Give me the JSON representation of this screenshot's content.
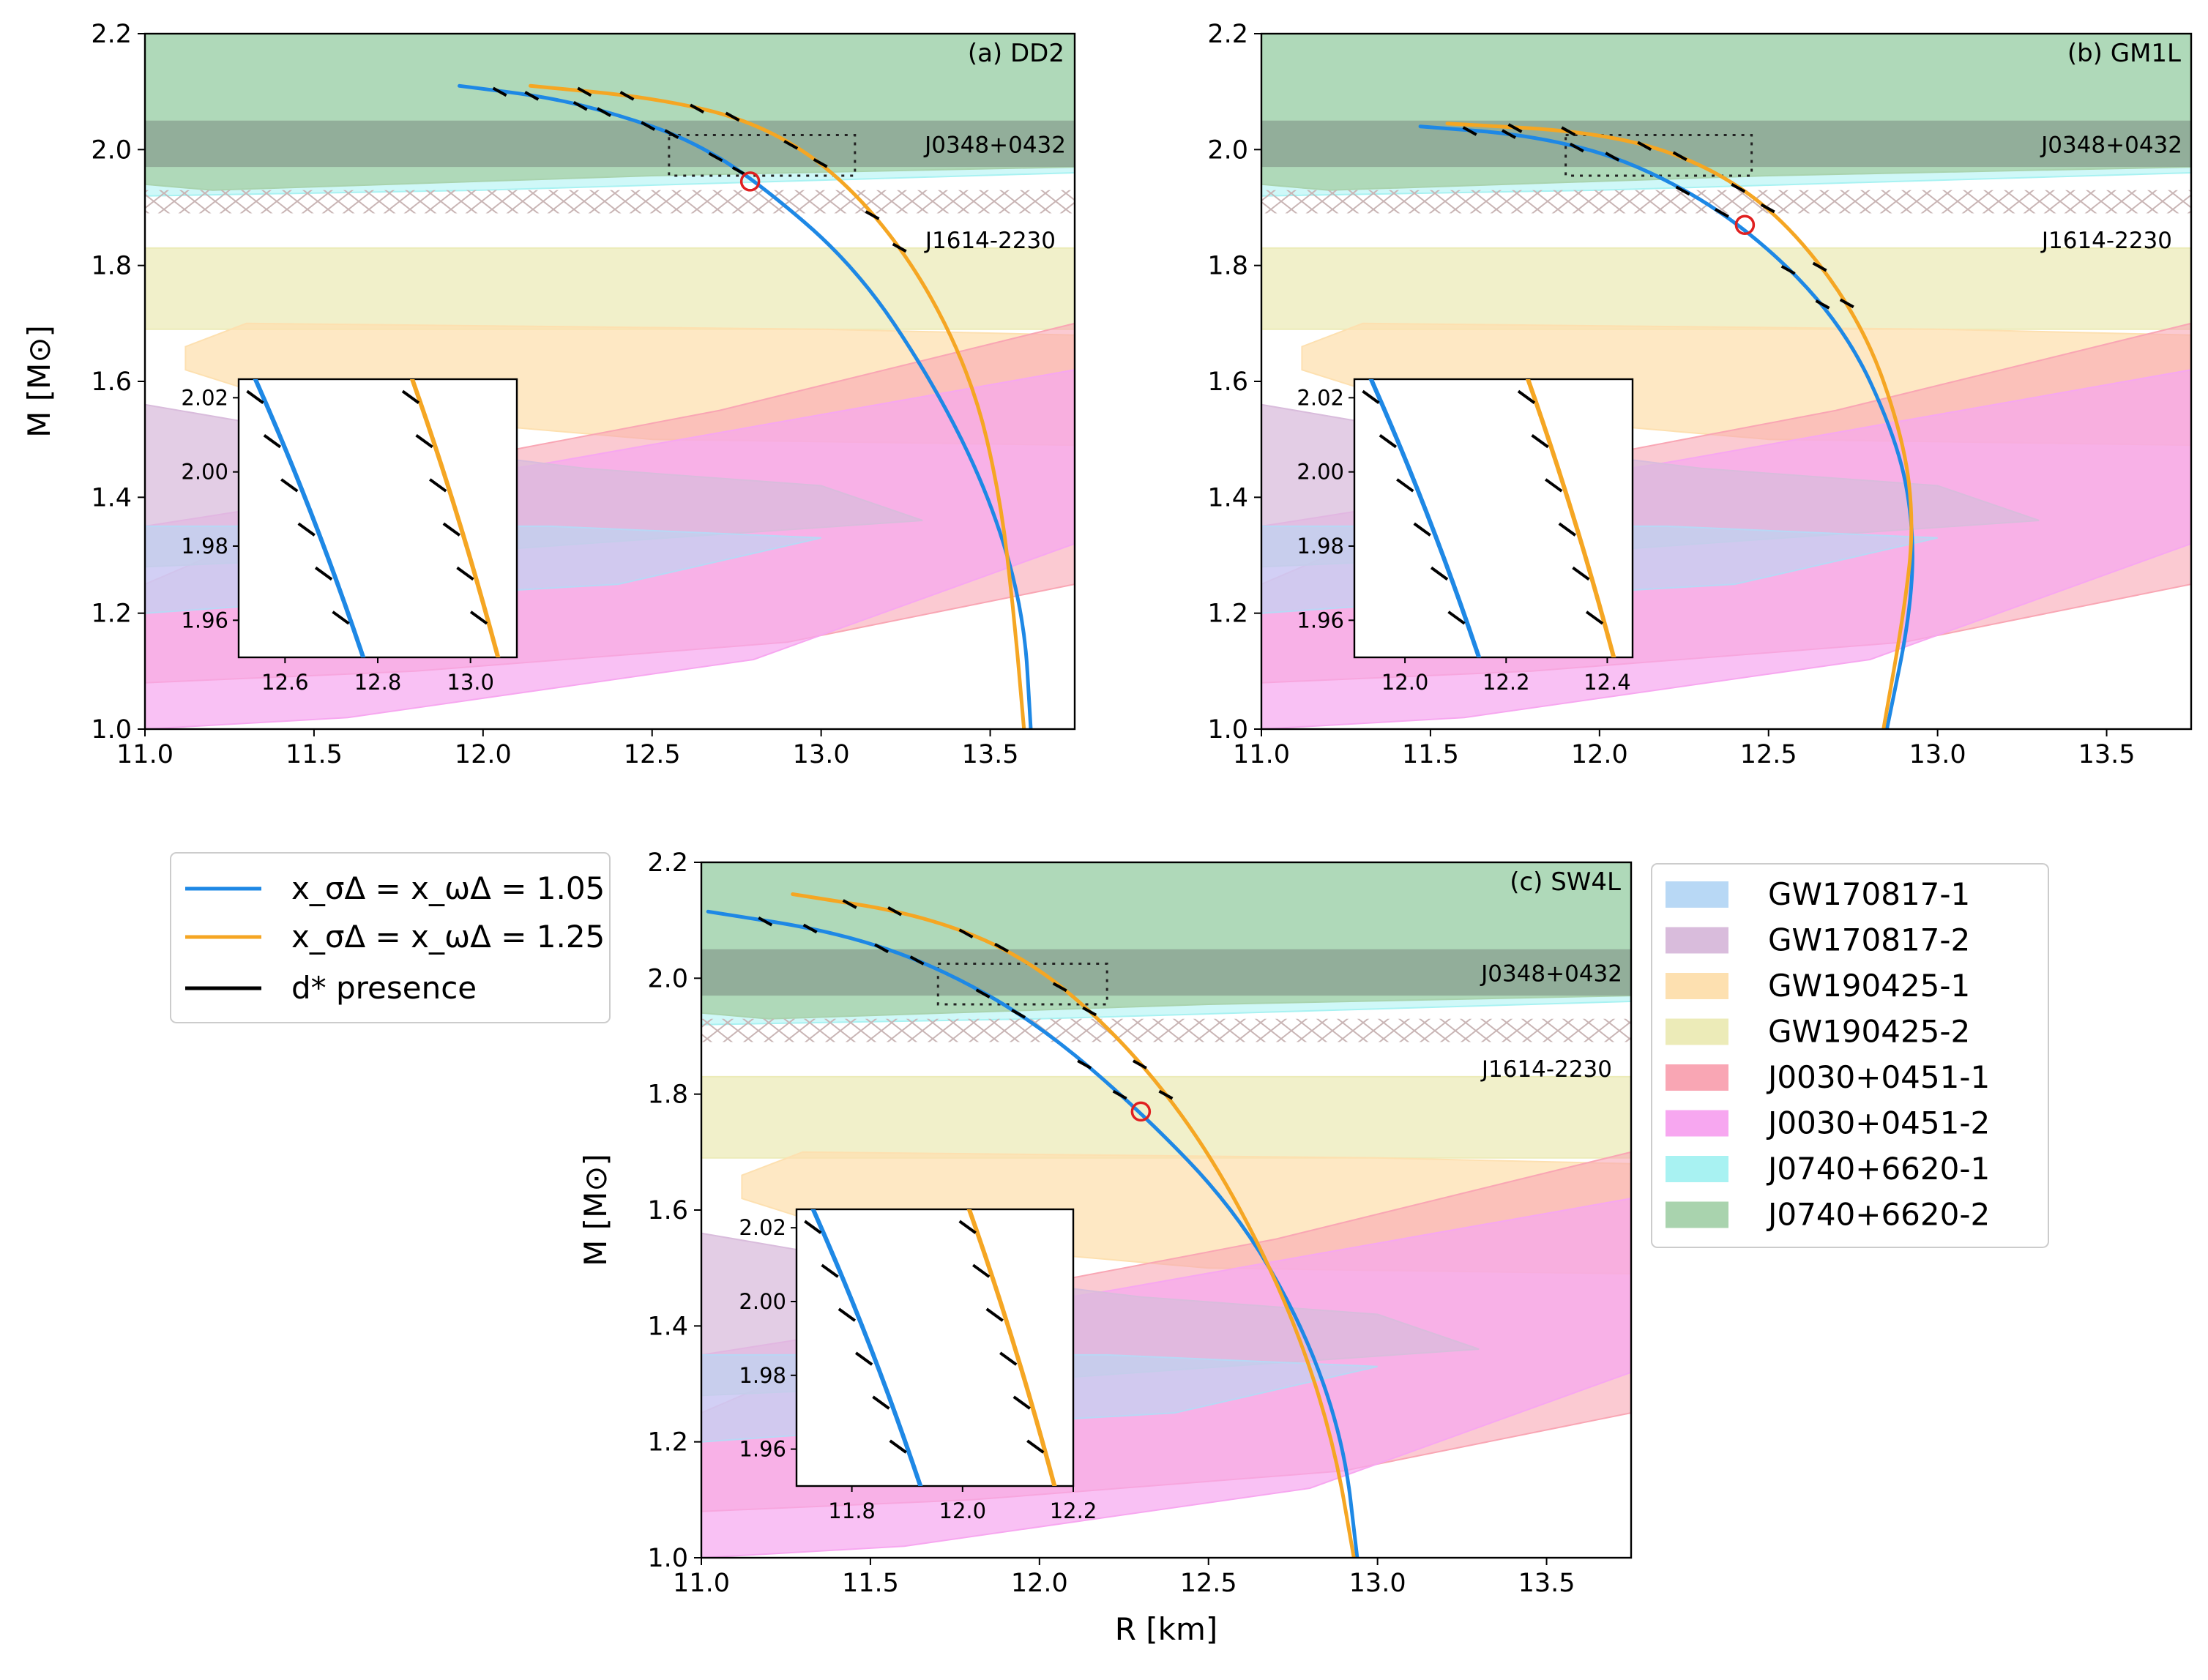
{
  "chart_data": [
    {
      "type": "line",
      "panel": "(a) DD2",
      "title": "(a) DD2",
      "xlabel": "",
      "ylabel": "M [M⊙]",
      "xlim": [
        11.0,
        13.75
      ],
      "ylim": [
        1.0,
        2.2
      ],
      "xticks": [
        "11.0",
        "11.5",
        "12.0",
        "12.5",
        "13.0",
        "13.5"
      ],
      "yticks": [
        "1.0",
        "1.2",
        "1.4",
        "1.6",
        "1.8",
        "2.0",
        "2.2"
      ],
      "series": [
        {
          "name": "x_σΔ = x_ωΔ = 1.05",
          "color": "#1e88e5",
          "points": [
            [
              13.62,
              1.0
            ],
            [
              13.6,
              1.2
            ],
            [
              13.5,
              1.4
            ],
            [
              13.33,
              1.6
            ],
            [
              13.1,
              1.8
            ],
            [
              12.8,
              1.95
            ],
            [
              12.6,
              2.02
            ],
            [
              12.4,
              2.06
            ],
            [
              12.2,
              2.09
            ],
            [
              11.93,
              2.11
            ]
          ]
        },
        {
          "name": "x_σΔ = x_ωΔ = 1.25",
          "color": "#f5a623",
          "points": [
            [
              13.6,
              1.0
            ],
            [
              13.57,
              1.2
            ],
            [
              13.53,
              1.4
            ],
            [
              13.45,
              1.6
            ],
            [
              13.28,
              1.8
            ],
            [
              13.05,
              1.96
            ],
            [
              12.8,
              2.05
            ],
            [
              12.5,
              2.09
            ],
            [
              12.14,
              2.11
            ]
          ]
        }
      ],
      "d_star_onset": {
        "R": 12.79,
        "M": 1.945
      },
      "zoom_box": {
        "x": [
          12.55,
          13.1
        ],
        "y": [
          1.955,
          2.025
        ]
      },
      "inset": {
        "xlim": [
          12.5,
          13.1
        ],
        "ylim": [
          1.95,
          2.025
        ],
        "xticks": [
          "12.6",
          "12.8",
          "13.0"
        ],
        "yticks": [
          "1.96",
          "1.98",
          "2.00",
          "2.02"
        ]
      },
      "pulsars": [
        {
          "name": "J0348+0432",
          "M_range": [
            1.97,
            2.05
          ]
        },
        {
          "name": "J1614-2230",
          "M_range": [
            1.89,
            1.93
          ]
        }
      ]
    },
    {
      "type": "line",
      "panel": "(b) GM1L",
      "title": "(b) GM1L",
      "xlabel": "",
      "ylabel": "",
      "xlim": [
        11.0,
        13.75
      ],
      "ylim": [
        1.0,
        2.2
      ],
      "xticks": [
        "11.0",
        "11.5",
        "12.0",
        "12.5",
        "13.0",
        "13.5"
      ],
      "yticks": [
        "1.0",
        "1.2",
        "1.4",
        "1.6",
        "1.8",
        "2.0",
        "2.2"
      ],
      "series": [
        {
          "name": "x_σΔ = x_ωΔ = 1.05",
          "color": "#1e88e5",
          "points": [
            [
              12.85,
              1.0
            ],
            [
              12.92,
              1.2
            ],
            [
              12.93,
              1.35
            ],
            [
              12.88,
              1.5
            ],
            [
              12.72,
              1.7
            ],
            [
              12.43,
              1.87
            ],
            [
              12.1,
              1.98
            ],
            [
              11.8,
              2.025
            ],
            [
              11.47,
              2.04
            ]
          ]
        },
        {
          "name": "x_σΔ = x_ωΔ = 1.25",
          "color": "#f5a623",
          "points": [
            [
              12.84,
              1.0
            ],
            [
              12.9,
              1.2
            ],
            [
              12.93,
              1.35
            ],
            [
              12.9,
              1.5
            ],
            [
              12.78,
              1.7
            ],
            [
              12.55,
              1.88
            ],
            [
              12.3,
              1.98
            ],
            [
              12.0,
              2.03
            ],
            [
              11.55,
              2.045
            ]
          ]
        }
      ],
      "d_star_onset": {
        "R": 12.43,
        "M": 1.87
      },
      "zoom_box": {
        "x": [
          11.9,
          12.45
        ],
        "y": [
          1.955,
          2.025
        ]
      },
      "inset": {
        "xlim": [
          11.9,
          12.45
        ],
        "ylim": [
          1.95,
          2.025
        ],
        "xticks": [
          "12.0",
          "12.2",
          "12.4"
        ],
        "yticks": [
          "1.96",
          "1.98",
          "2.00",
          "2.02"
        ]
      },
      "pulsars": [
        {
          "name": "J0348+0432",
          "M_range": [
            1.97,
            2.05
          ]
        },
        {
          "name": "J1614-2230",
          "M_range": [
            1.89,
            1.93
          ]
        }
      ]
    },
    {
      "type": "line",
      "panel": "(c) SW4L",
      "title": "(c) SW4L",
      "xlabel": "R [km]",
      "ylabel": "M [M⊙]",
      "xlim": [
        11.0,
        13.75
      ],
      "ylim": [
        1.0,
        2.2
      ],
      "xticks": [
        "11.0",
        "11.5",
        "12.0",
        "12.5",
        "13.0",
        "13.5"
      ],
      "yticks": [
        "1.0",
        "1.2",
        "1.4",
        "1.6",
        "1.8",
        "2.0",
        "2.2"
      ],
      "series": [
        {
          "name": "x_σΔ = x_ωΔ = 1.05",
          "color": "#1e88e5",
          "points": [
            [
              12.94,
              1.0
            ],
            [
              12.9,
              1.2
            ],
            [
              12.78,
              1.4
            ],
            [
              12.58,
              1.6
            ],
            [
              12.3,
              1.77
            ],
            [
              12.0,
              1.92
            ],
            [
              11.7,
              2.02
            ],
            [
              11.4,
              2.08
            ],
            [
              11.02,
              2.115
            ]
          ]
        },
        {
          "name": "x_σΔ = x_ωΔ = 1.25",
          "color": "#f5a623",
          "points": [
            [
              12.93,
              1.0
            ],
            [
              12.87,
              1.2
            ],
            [
              12.76,
              1.4
            ],
            [
              12.6,
              1.6
            ],
            [
              12.42,
              1.77
            ],
            [
              12.2,
              1.92
            ],
            [
              11.95,
              2.04
            ],
            [
              11.65,
              2.11
            ],
            [
              11.27,
              2.145
            ]
          ]
        }
      ],
      "d_star_onset": {
        "R": 12.3,
        "M": 1.77
      },
      "zoom_box": {
        "x": [
          11.7,
          12.2
        ],
        "y": [
          1.955,
          2.025
        ]
      },
      "inset": {
        "xlim": [
          11.7,
          12.2
        ],
        "ylim": [
          1.95,
          2.025
        ],
        "xticks": [
          "11.8",
          "12.0",
          "12.2"
        ],
        "yticks": [
          "1.96",
          "1.98",
          "2.00",
          "2.02"
        ]
      },
      "pulsars": [
        {
          "name": "J0348+0432",
          "M_range": [
            1.97,
            2.05
          ]
        },
        {
          "name": "J1614-2230",
          "M_range": [
            1.89,
            1.93
          ]
        }
      ]
    }
  ],
  "legend_lines": [
    {
      "label": "x_σΔ = x_ωΔ = 1.05",
      "color": "#1e88e5"
    },
    {
      "label": "x_σΔ = x_ωΔ = 1.25",
      "color": "#f5a623"
    },
    {
      "label": "d* presence",
      "color": "#000000"
    }
  ],
  "legend_regions": [
    {
      "label": "GW170817-1",
      "color": "#b8d8f5"
    },
    {
      "label": "GW170817-2",
      "color": "#d9bcdc"
    },
    {
      "label": "GW190425-1",
      "color": "#fde0b0"
    },
    {
      "label": "GW190425-2",
      "color": "#ecebb8"
    },
    {
      "label": "J0030+0451-1",
      "color": "#f9a6b4"
    },
    {
      "label": "J0030+0451-2",
      "color": "#f7a7f0"
    },
    {
      "label": "J0740+6620-1",
      "color": "#a8f2f2"
    },
    {
      "label": "J0740+6620-2",
      "color": "#a9d3ae"
    }
  ]
}
